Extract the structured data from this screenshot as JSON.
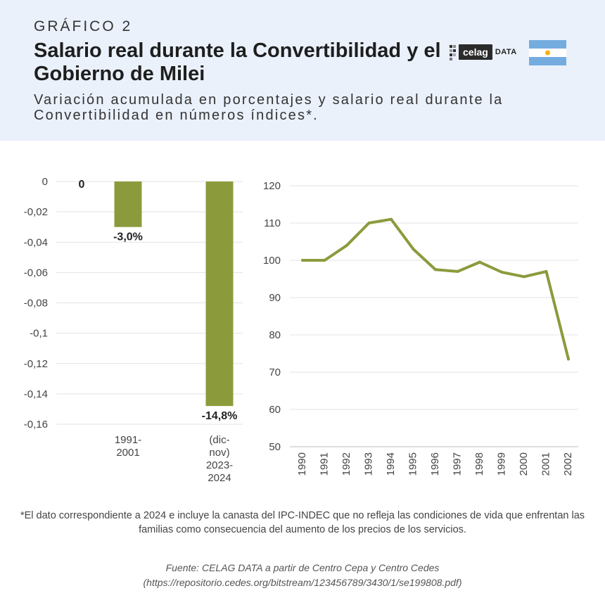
{
  "header": {
    "kicker": "GRÁFICO 2",
    "title": "Salario real durante la Convertibilidad y el Gobierno de Milei",
    "subtitle": "Variación acumulada en porcentajes y salario real durante la Convertibilidad en números índices*.",
    "logo_text": "celag",
    "logo_suffix": "DATA",
    "flag_icon": "argentina-flag-icon"
  },
  "chart_data": [
    {
      "type": "bar",
      "categories": [
        "1991-\n2001",
        "(dic-\nnov)\n2023-\n2024"
      ],
      "values": [
        -0.03,
        -0.148
      ],
      "data_labels": [
        "-3,0%",
        "-14,8%"
      ],
      "baseline_label": "0",
      "ylim": [
        -0.16,
        0
      ],
      "yticks": [
        "0",
        "-0,02",
        "-0,04",
        "-0,06",
        "-0,08",
        "-0,1",
        "-0,12",
        "-0,14",
        "-0,16"
      ],
      "grid": true,
      "color": "#8b9b3c"
    },
    {
      "type": "line",
      "x": [
        "1990",
        "1991",
        "1992",
        "1993",
        "1994",
        "1995",
        "1996",
        "1997",
        "1998",
        "1999",
        "2000",
        "2001",
        "2002"
      ],
      "values": [
        100,
        100,
        104,
        110,
        111,
        103,
        97.5,
        97,
        99.5,
        96.8,
        95.6,
        97,
        73.5
      ],
      "ylim": [
        50,
        120
      ],
      "yticks": [
        "120",
        "110",
        "100",
        "90",
        "80",
        "70",
        "60",
        "50"
      ],
      "grid": true,
      "color": "#8b9b3c"
    }
  ],
  "footnote": "*El dato correspondiente a 2024 e incluye la canasta del IPC-INDEC que no refleja las condiciones de vida que enfrentan las familias como consecuencia del aumento de los precios de los servicios.",
  "source": {
    "line1": "Fuente: CELAG DATA a partir de Centro Cepa y Centro Cedes",
    "line2": "(https://repositorio.cedes.org/bitstream/123456789/3430/1/se199808.pdf)"
  }
}
